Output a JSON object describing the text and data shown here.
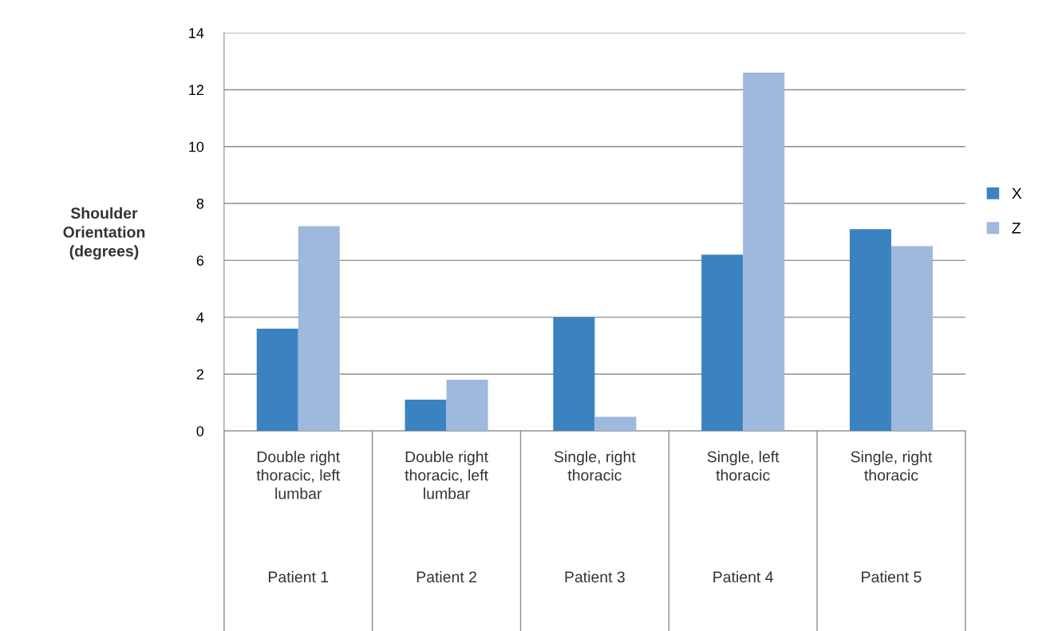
{
  "chart_data": {
    "type": "bar",
    "ylabel": "Shoulder Orientation (degrees)",
    "categories": [
      "Double right thoracic, left lumbar",
      "Double right thoracic, left lumbar",
      "Single, right thoracic",
      "Single, left thoracic",
      "Single, right thoracic"
    ],
    "annotations": [
      "Patient 1",
      "Patient 2",
      "Patient 3",
      "Patient 4",
      "Patient 5"
    ],
    "series": [
      {
        "name": "X",
        "color": "#3b83c0",
        "values": [
          3.6,
          1.1,
          4.0,
          6.2,
          7.1
        ]
      },
      {
        "name": "Z",
        "color": "#9eb9dd",
        "values": [
          7.2,
          1.8,
          0.5,
          12.6,
          6.5
        ]
      }
    ],
    "ylim": [
      0,
      14
    ],
    "yticks": [
      0,
      2,
      4,
      6,
      8,
      10,
      12,
      14
    ],
    "grid": "y",
    "legend": "right"
  }
}
